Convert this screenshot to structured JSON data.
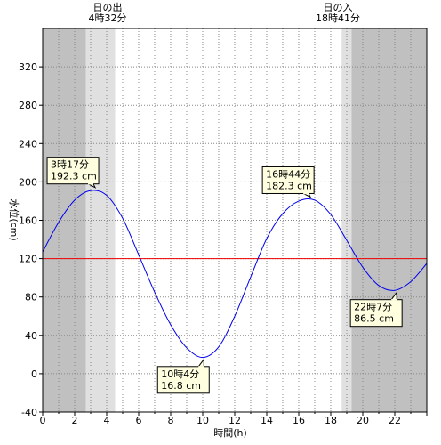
{
  "sun": {
    "sunrise_label": "日の出",
    "sunrise_time": "4時32分",
    "sunset_label": "日の入",
    "sunset_time": "18時41分"
  },
  "colors": {
    "night": "#c0c0c0",
    "twilight": "#e0e0e0",
    "day": "#ffffff",
    "tide_line": "#0000ee",
    "reference_line": "#ee0000",
    "callout_fill": "#ffffe0"
  },
  "chart_data": {
    "type": "line",
    "xlabel": "時間(h)",
    "ylabel": "水位(cm)",
    "xlim": [
      0,
      24
    ],
    "ylim": [
      -40,
      360
    ],
    "x_ticks": [
      0,
      2,
      4,
      6,
      8,
      10,
      12,
      14,
      16,
      18,
      20,
      22
    ],
    "y_ticks": [
      -40,
      0,
      40,
      80,
      120,
      160,
      200,
      240,
      280,
      320
    ],
    "grid": true,
    "reference_line_y": 120,
    "shading": {
      "night_morning_end": 2.7,
      "sunrise": 4.53,
      "sunset": 18.68,
      "night_evening_start": 19.3
    },
    "extremes": [
      {
        "time": "3時17分",
        "level": "192.3 cm",
        "x": 3.28,
        "y": 192.3,
        "type": "high"
      },
      {
        "time": "10時4分",
        "level": "16.8 cm",
        "x": 10.07,
        "y": 16.8,
        "type": "low"
      },
      {
        "time": "16時44分",
        "level": "182.3 cm",
        "x": 16.73,
        "y": 182.3,
        "type": "high"
      },
      {
        "time": "22時7分",
        "level": "86.5 cm",
        "x": 22.12,
        "y": 86.5,
        "type": "low"
      }
    ],
    "series": [
      {
        "x": [
          0,
          1,
          2,
          3,
          4,
          5,
          6,
          7,
          8,
          9,
          10,
          11,
          12,
          13,
          14,
          15,
          16,
          17,
          18,
          19,
          20,
          21,
          22,
          23,
          24
        ],
        "y": [
          127,
          158,
          181,
          191,
          186,
          162,
          124,
          85,
          51,
          27,
          17,
          28,
          60,
          101,
          141,
          167,
          180,
          181,
          166,
          139,
          111,
          92,
          87,
          96,
          115
        ]
      }
    ]
  }
}
